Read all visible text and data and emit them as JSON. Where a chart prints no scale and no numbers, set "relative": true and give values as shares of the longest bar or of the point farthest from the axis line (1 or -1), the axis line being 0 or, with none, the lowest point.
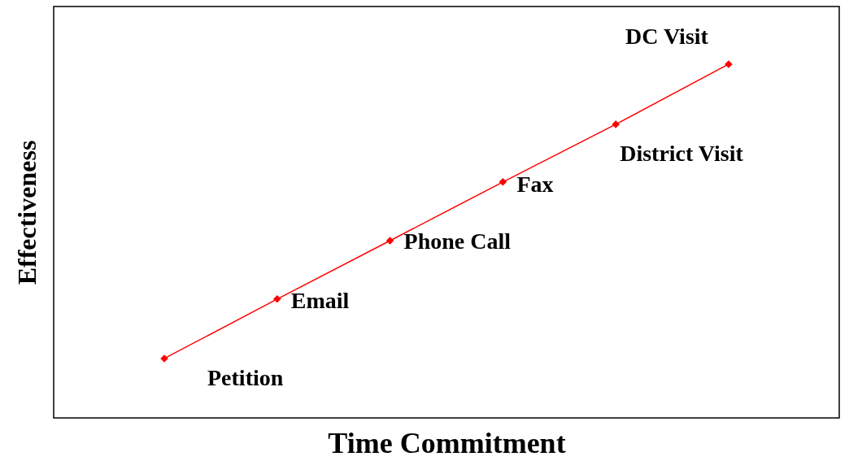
{
  "chart_data": {
    "type": "line",
    "xlabel": "Time Commitment",
    "ylabel": "Effectiveness",
    "categories": [
      null,
      null,
      null,
      null,
      null,
      null
    ],
    "series": [
      {
        "color": "#ff0000",
        "values": [
          0.168,
          0.336,
          0.501,
          0.667,
          0.83,
          1.0
        ]
      }
    ],
    "annotations": [
      "Petition",
      "Email",
      "Phone Call",
      "Fax",
      "District Visit",
      "DC Visit"
    ],
    "relative": true,
    "marker": "diamond",
    "line_style": "solid"
  }
}
